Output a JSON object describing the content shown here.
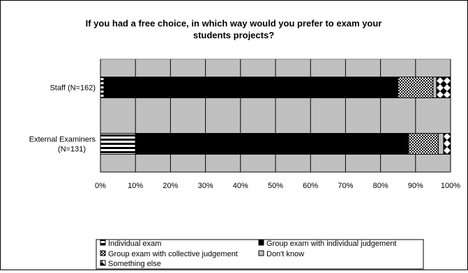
{
  "chart_data": {
    "type": "bar",
    "stacked": true,
    "orientation": "horizontal",
    "title": "If you had a free choice, in which way would you prefer to exam your students projects?",
    "categories": [
      "Staff (N=162)",
      "External Examiners (N=131)"
    ],
    "series": [
      {
        "name": "Individual exam",
        "values": [
          1,
          10
        ],
        "pattern": "hstripes"
      },
      {
        "name": "Group exam with individual judgement",
        "values": [
          84,
          78
        ],
        "pattern": "solid"
      },
      {
        "name": "Group exam with collective judgement",
        "values": [
          10,
          8.5
        ],
        "pattern": "checker"
      },
      {
        "name": "Don't know",
        "values": [
          1,
          1.5
        ],
        "pattern": "gray"
      },
      {
        "name": "Something else",
        "values": [
          4,
          2
        ],
        "pattern": "diamond"
      }
    ],
    "xlim": [
      0,
      100
    ],
    "xticks": [
      "0%",
      "10%",
      "20%",
      "30%",
      "40%",
      "50%",
      "60%",
      "70%",
      "80%",
      "90%",
      "100%"
    ],
    "grid": true,
    "plot_background": "#c0c0c0",
    "legend_position": "bottom"
  }
}
